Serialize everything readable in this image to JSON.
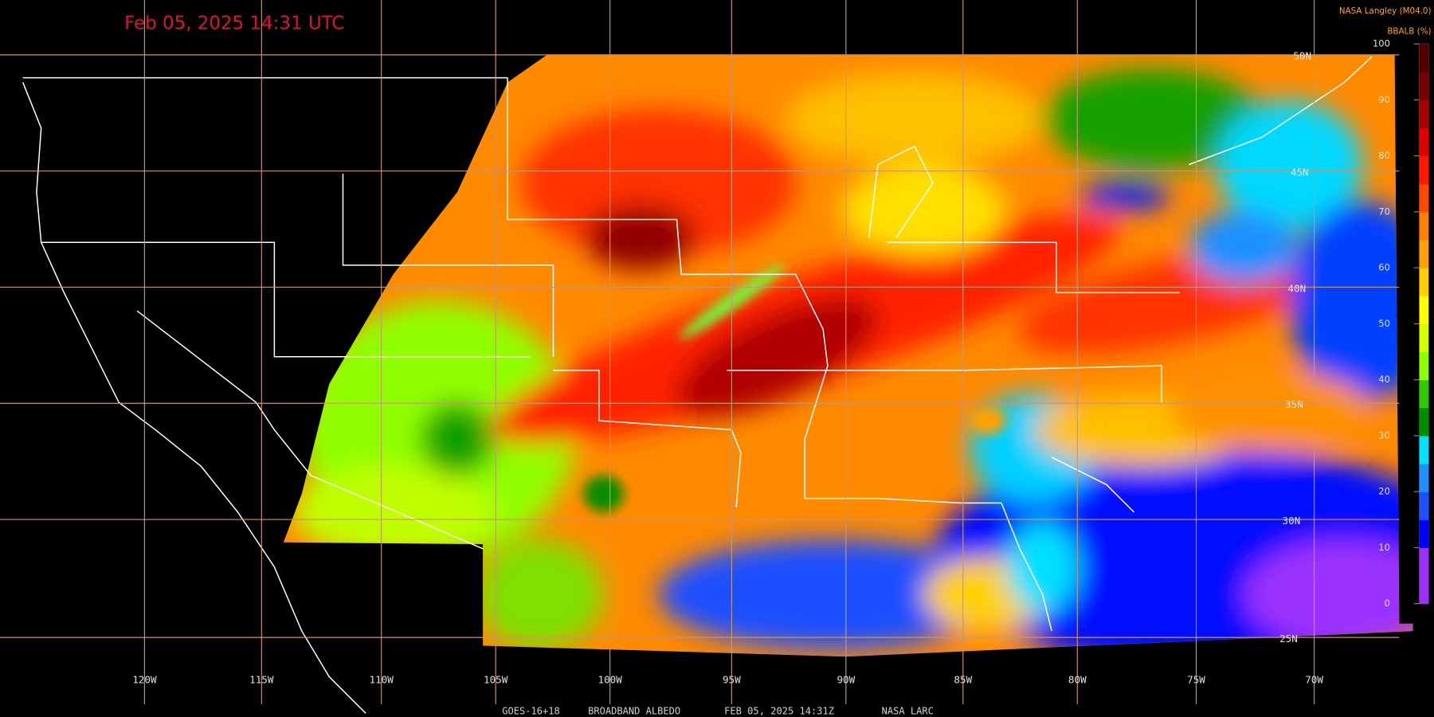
{
  "title": "Feb 05, 2025 14:31 UTC",
  "credit": "NASA Langley (M04.0)",
  "colorbar": {
    "label": "BBALB (%)",
    "lim": [
      0,
      100
    ],
    "ticks": [
      0,
      10,
      20,
      30,
      40,
      50,
      60,
      70,
      80,
      90,
      100
    ],
    "colors": [
      "#9b30ff",
      "#9b30ff",
      "#0000ff",
      "#1e50ff",
      "#1e90ff",
      "#00e0ff",
      "#008c00",
      "#30c800",
      "#90ff00",
      "#d8ff00",
      "#ffff00",
      "#ffd000",
      "#ffa000",
      "#ff8000",
      "#ff4800",
      "#ff1800",
      "#e00000",
      "#a80000",
      "#780000",
      "#500000"
    ]
  },
  "longitude_labels": [
    "120W",
    "115W",
    "110W",
    "105W",
    "100W",
    "95W",
    "90W",
    "85W",
    "80W",
    "75W",
    "70W"
  ],
  "latitude_labels": [
    "50N",
    "45N",
    "40N",
    "35N",
    "30N",
    "25N"
  ],
  "caption": [
    "GOES-16+18",
    "BROADBAND ALBEDO",
    "FEB 05, 2025 14:31Z",
    "NASA LARC"
  ]
}
